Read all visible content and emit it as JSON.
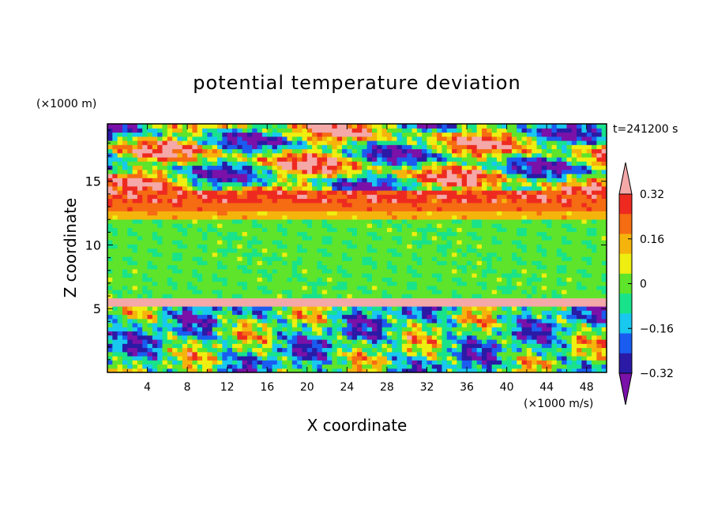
{
  "chart_data": {
    "type": "heatmap",
    "title": "potential temperature deviation",
    "xlabel": "X coordinate",
    "ylabel": "Z coordinate",
    "x_unit": "(×1000 m/s)",
    "y_unit": "(×1000 m)",
    "time_label": "t=241200 s",
    "xlim": [
      0,
      50
    ],
    "ylim": [
      0,
      19.5
    ],
    "x_ticks": [
      "4",
      "8",
      "12",
      "16",
      "20",
      "24",
      "28",
      "32",
      "36",
      "40",
      "44",
      "48"
    ],
    "y_ticks": [
      "5",
      "10",
      "15"
    ],
    "colorbar": {
      "tick_labels": [
        "0.32",
        "0.16",
        "0",
        "−0.16",
        "−0.32"
      ],
      "tick_values": [
        0.32,
        0.16,
        0,
        -0.16,
        -0.32
      ],
      "levels": [
        -0.4,
        -0.32,
        -0.24,
        -0.16,
        -0.08,
        0,
        0.08,
        0.16,
        0.24,
        0.32,
        0.4
      ],
      "colors": [
        "#7a11a8",
        "#2a1aa6",
        "#1a5cf0",
        "#18c8ee",
        "#18e38a",
        "#5ee42a",
        "#eeee10",
        "#f5b40c",
        "#f56c12",
        "#ee2a20",
        "#f4a8a8"
      ]
    },
    "field": {
      "layers": [
        {
          "z_range": [
            0,
            5.2
          ],
          "description_level": "mixed",
          "mean": 0.0
        },
        {
          "z_range": [
            5.2,
            5.8
          ],
          "mean": 0.4
        },
        {
          "z_range": [
            5.8,
            12.0
          ],
          "mean": 0.02
        },
        {
          "z_range": [
            12.0,
            14.5
          ],
          "mean": 0.28
        },
        {
          "z_range": [
            14.5,
            19.5
          ],
          "mean": 0.1
        }
      ]
    }
  }
}
